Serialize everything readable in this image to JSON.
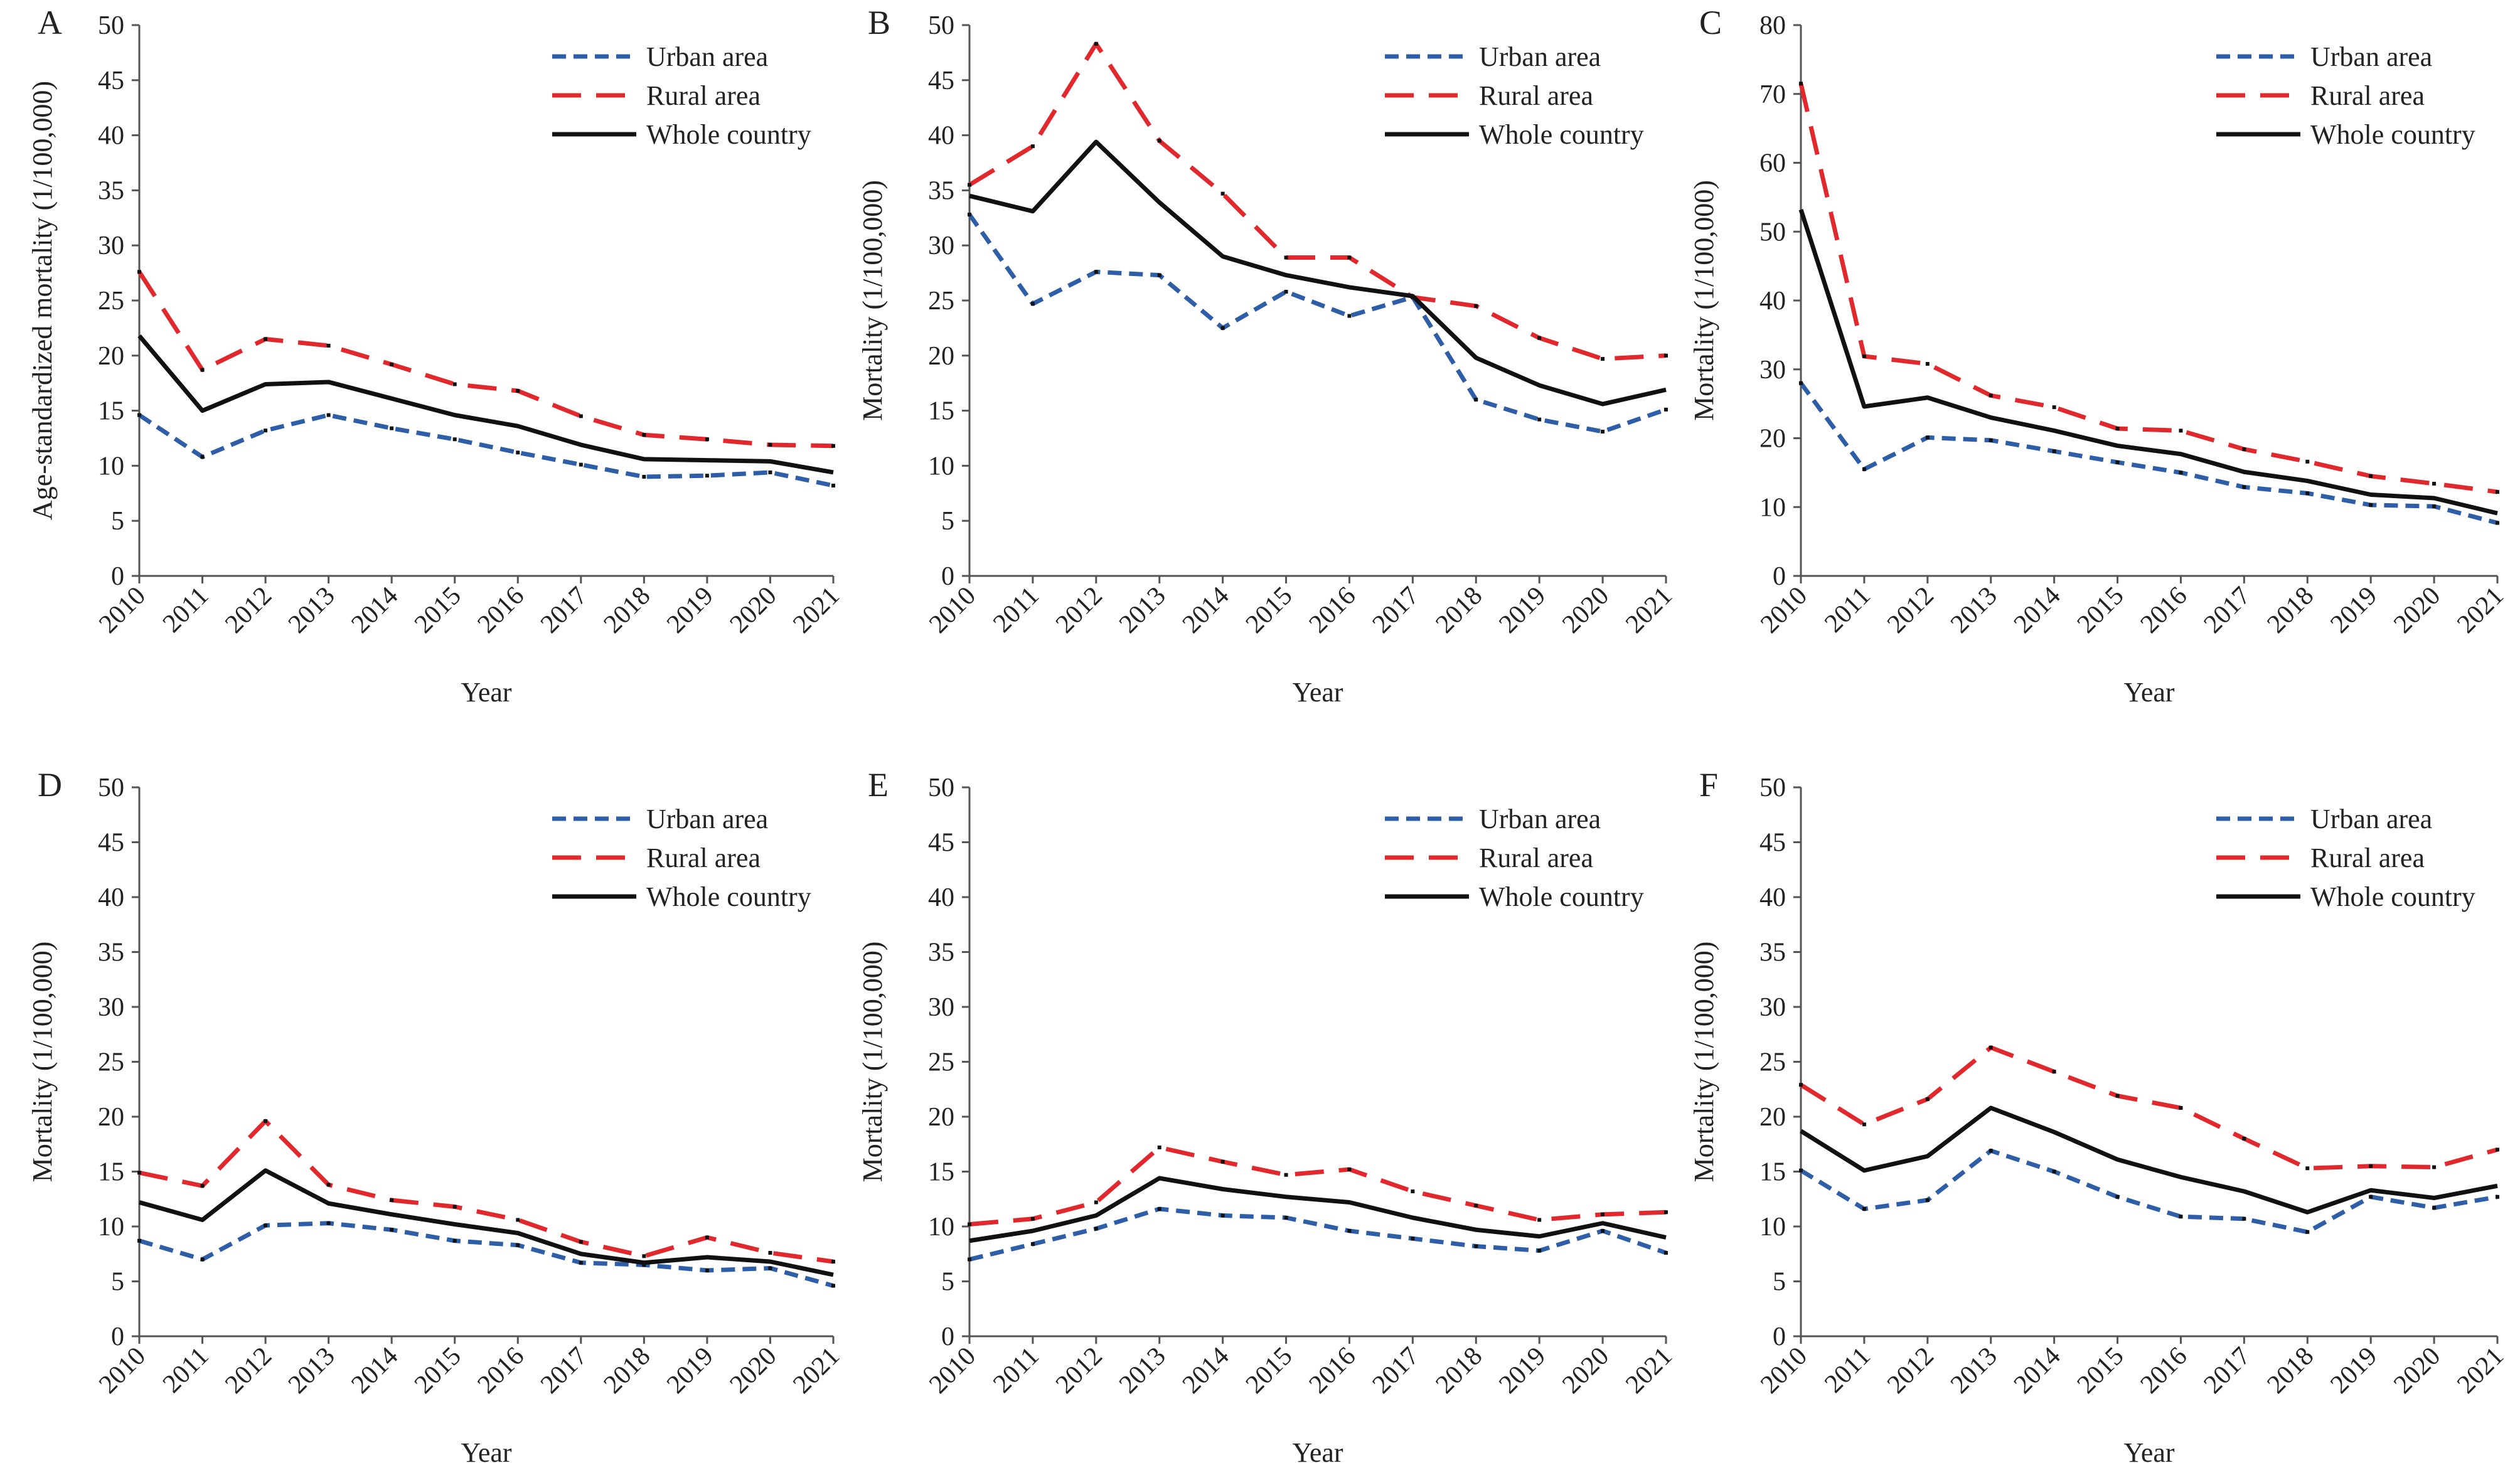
{
  "chart_data": [
    {
      "type": "line",
      "panel_label": "A",
      "xlabel": "Year",
      "ylabel": "Age-standardized mortality (1/100,000)",
      "ylim": [
        0,
        50
      ],
      "yticks": [
        0,
        5,
        10,
        15,
        20,
        25,
        30,
        35,
        40,
        45,
        50
      ],
      "x": [
        "2010",
        "2011",
        "2012",
        "2013",
        "2014",
        "2015",
        "2016",
        "2017",
        "2018",
        "2019",
        "2020",
        "2021"
      ],
      "legend_position": "top-right",
      "series": [
        {
          "name": "Urban area",
          "color": "#2f5ea8",
          "dash": "dashed-short",
          "values": [
            14.6,
            10.8,
            13.2,
            14.6,
            13.4,
            12.4,
            11.2,
            10.1,
            9.0,
            9.1,
            9.4,
            8.2
          ]
        },
        {
          "name": "Rural area",
          "color": "#e0282d",
          "dash": "dashed-long",
          "values": [
            27.6,
            18.7,
            21.5,
            20.9,
            19.2,
            17.4,
            16.8,
            14.5,
            12.8,
            12.4,
            11.9,
            11.8
          ]
        },
        {
          "name": "Whole country",
          "color": "#111111",
          "dash": "solid",
          "values": [
            21.8,
            15.0,
            17.4,
            17.6,
            16.1,
            14.6,
            13.6,
            11.9,
            10.6,
            10.5,
            10.4,
            9.4
          ]
        }
      ]
    },
    {
      "type": "line",
      "panel_label": "B",
      "xlabel": "Year",
      "ylabel": "Mortality (1/100,000)",
      "ylim": [
        0,
        50
      ],
      "yticks": [
        0,
        5,
        10,
        15,
        20,
        25,
        30,
        35,
        40,
        45,
        50
      ],
      "x": [
        "2010",
        "2011",
        "2012",
        "2013",
        "2014",
        "2015",
        "2016",
        "2017",
        "2018",
        "2019",
        "2020",
        "2021"
      ],
      "legend_position": "top-right",
      "series": [
        {
          "name": "Urban area",
          "color": "#2f5ea8",
          "dash": "dashed-short",
          "values": [
            32.8,
            24.7,
            27.6,
            27.3,
            22.5,
            25.8,
            23.6,
            25.3,
            16.0,
            14.2,
            13.1,
            15.1
          ]
        },
        {
          "name": "Rural area",
          "color": "#e0282d",
          "dash": "dashed-long",
          "values": [
            35.5,
            39.0,
            48.3,
            39.5,
            34.7,
            28.9,
            28.9,
            25.3,
            24.5,
            21.6,
            19.7,
            20.0
          ]
        },
        {
          "name": "Whole country",
          "color": "#111111",
          "dash": "solid",
          "values": [
            34.5,
            33.1,
            39.4,
            33.9,
            29.0,
            27.3,
            26.2,
            25.4,
            19.8,
            17.3,
            15.6,
            16.9
          ]
        }
      ]
    },
    {
      "type": "line",
      "panel_label": "C",
      "xlabel": "Year",
      "ylabel": "Mortality (1/100,000)",
      "ylim": [
        0,
        80
      ],
      "yticks": [
        0,
        10,
        20,
        30,
        40,
        50,
        60,
        70,
        80
      ],
      "x": [
        "2010",
        "2011",
        "2012",
        "2013",
        "2014",
        "2015",
        "2016",
        "2017",
        "2018",
        "2019",
        "2020",
        "2021"
      ],
      "legend_position": "top-right",
      "series": [
        {
          "name": "Urban area",
          "color": "#2f5ea8",
          "dash": "dashed-short",
          "values": [
            28.0,
            15.5,
            20.1,
            19.7,
            18.1,
            16.5,
            15.0,
            12.9,
            12.0,
            10.3,
            10.1,
            7.7
          ]
        },
        {
          "name": "Rural area",
          "color": "#e0282d",
          "dash": "dashed-long",
          "values": [
            71.5,
            31.9,
            30.8,
            26.2,
            24.5,
            21.4,
            21.1,
            18.4,
            16.6,
            14.5,
            13.4,
            12.2
          ]
        },
        {
          "name": "Whole country",
          "color": "#111111",
          "dash": "solid",
          "values": [
            53.2,
            24.6,
            25.9,
            23.0,
            21.1,
            18.9,
            17.7,
            15.1,
            13.8,
            11.8,
            11.3,
            9.1
          ]
        }
      ]
    },
    {
      "type": "line",
      "panel_label": "D",
      "xlabel": "Year",
      "ylabel": "Mortality (1/100,000)",
      "ylim": [
        0,
        50
      ],
      "yticks": [
        0,
        5,
        10,
        15,
        20,
        25,
        30,
        35,
        40,
        45,
        50
      ],
      "x": [
        "2010",
        "2011",
        "2012",
        "2013",
        "2014",
        "2015",
        "2016",
        "2017",
        "2018",
        "2019",
        "2020",
        "2021"
      ],
      "legend_position": "top-right",
      "series": [
        {
          "name": "Urban area",
          "color": "#2f5ea8",
          "dash": "dashed-short",
          "values": [
            8.7,
            7.0,
            10.1,
            10.3,
            9.7,
            8.7,
            8.3,
            6.7,
            6.5,
            6.0,
            6.2,
            4.6
          ]
        },
        {
          "name": "Rural area",
          "color": "#e0282d",
          "dash": "dashed-long",
          "values": [
            14.9,
            13.7,
            19.6,
            13.8,
            12.4,
            11.8,
            10.6,
            8.6,
            7.3,
            9.0,
            7.6,
            6.8
          ]
        },
        {
          "name": "Whole country",
          "color": "#111111",
          "dash": "solid",
          "values": [
            12.2,
            10.6,
            15.1,
            12.1,
            11.1,
            10.2,
            9.4,
            7.5,
            6.7,
            7.2,
            6.8,
            5.6
          ]
        }
      ]
    },
    {
      "type": "line",
      "panel_label": "E",
      "xlabel": "Year",
      "ylabel": "Mortality (1/100,000)",
      "ylim": [
        0,
        50
      ],
      "yticks": [
        0,
        5,
        10,
        15,
        20,
        25,
        30,
        35,
        40,
        45,
        50
      ],
      "x": [
        "2010",
        "2011",
        "2012",
        "2013",
        "2014",
        "2015",
        "2016",
        "2017",
        "2018",
        "2019",
        "2020",
        "2021"
      ],
      "legend_position": "top-right",
      "series": [
        {
          "name": "Urban area",
          "color": "#2f5ea8",
          "dash": "dashed-short",
          "values": [
            7.0,
            8.4,
            9.8,
            11.6,
            11.0,
            10.8,
            9.6,
            8.9,
            8.2,
            7.8,
            9.6,
            7.6
          ]
        },
        {
          "name": "Rural area",
          "color": "#e0282d",
          "dash": "dashed-long",
          "values": [
            10.2,
            10.7,
            12.2,
            17.2,
            15.9,
            14.7,
            15.2,
            13.2,
            11.9,
            10.6,
            11.1,
            11.3
          ]
        },
        {
          "name": "Whole country",
          "color": "#111111",
          "dash": "solid",
          "values": [
            8.7,
            9.6,
            11.0,
            14.4,
            13.4,
            12.7,
            12.2,
            10.8,
            9.7,
            9.1,
            10.3,
            9.0
          ]
        }
      ]
    },
    {
      "type": "line",
      "panel_label": "F",
      "xlabel": "Year",
      "ylabel": "Mortality (1/100,000)",
      "ylim": [
        0,
        50
      ],
      "yticks": [
        0,
        5,
        10,
        15,
        20,
        25,
        30,
        35,
        40,
        45,
        50
      ],
      "x": [
        "2010",
        "2011",
        "2012",
        "2013",
        "2014",
        "2015",
        "2016",
        "2017",
        "2018",
        "2019",
        "2020",
        "2021"
      ],
      "legend_position": "top-right",
      "series": [
        {
          "name": "Urban area",
          "color": "#2f5ea8",
          "dash": "dashed-short",
          "values": [
            15.1,
            11.6,
            12.4,
            16.9,
            15.0,
            12.7,
            10.9,
            10.7,
            9.5,
            12.7,
            11.7,
            12.7
          ]
        },
        {
          "name": "Rural area",
          "color": "#e0282d",
          "dash": "dashed-long",
          "values": [
            22.9,
            19.3,
            21.6,
            26.3,
            24.1,
            21.9,
            20.8,
            18.0,
            15.3,
            15.5,
            15.4,
            17.0
          ]
        },
        {
          "name": "Whole country",
          "color": "#111111",
          "dash": "solid",
          "values": [
            18.7,
            15.1,
            16.4,
            20.8,
            18.6,
            16.1,
            14.5,
            13.2,
            11.3,
            13.3,
            12.6,
            13.7
          ]
        }
      ]
    }
  ]
}
